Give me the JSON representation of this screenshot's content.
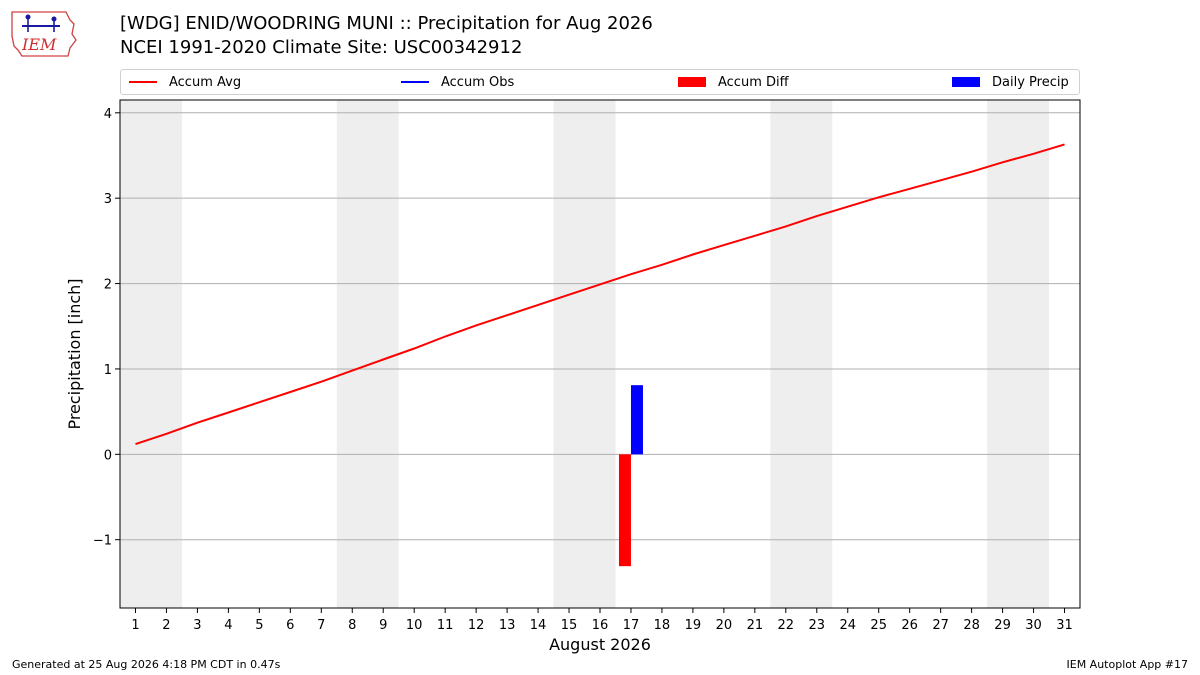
{
  "header": {
    "title_line1": "[WDG] ENID/WOODRING MUNI :: Precipitation for Aug 2026",
    "title_line2": "NCEI 1991-2020 Climate Site: USC00342912",
    "logo_text": "IEM"
  },
  "legend": {
    "items": [
      {
        "label": "Accum Avg",
        "kind": "line",
        "color": "#ff0000"
      },
      {
        "label": "Accum Obs",
        "kind": "line",
        "color": "#0000ff"
      },
      {
        "label": "Accum Diff",
        "kind": "patch",
        "color": "#ff0000"
      },
      {
        "label": "Daily Precip",
        "kind": "patch",
        "color": "#0000ff"
      }
    ]
  },
  "footer": {
    "generated": "Generated at 25 Aug 2026 4:18 PM CDT in 0.47s",
    "app": "IEM Autoplot App #17"
  },
  "chart_data": {
    "type": "line",
    "xlabel": "August 2026",
    "ylabel": "Precipitation [inch]",
    "xlim": [
      0.5,
      31.5
    ],
    "ylim": [
      -1.8,
      4.15
    ],
    "yticks": [
      -1,
      0,
      1,
      2,
      3,
      4
    ],
    "ytick_labels": [
      "−1",
      "0",
      "1",
      "2",
      "3",
      "4"
    ],
    "xticks": [
      1,
      2,
      3,
      4,
      5,
      6,
      7,
      8,
      9,
      10,
      11,
      12,
      13,
      14,
      15,
      16,
      17,
      18,
      19,
      20,
      21,
      22,
      23,
      24,
      25,
      26,
      27,
      28,
      29,
      30,
      31
    ],
    "grid": "y",
    "weekend_shading": [
      [
        1,
        2
      ],
      [
        8,
        9
      ],
      [
        15,
        16
      ],
      [
        22,
        23
      ],
      [
        29,
        30
      ]
    ],
    "series": [
      {
        "name": "Accum Avg",
        "kind": "line",
        "color": "#ff0000",
        "x": [
          1,
          2,
          3,
          4,
          5,
          6,
          7,
          8,
          9,
          10,
          11,
          12,
          13,
          14,
          15,
          16,
          17,
          18,
          19,
          20,
          21,
          22,
          23,
          24,
          25,
          26,
          27,
          28,
          29,
          30,
          31
        ],
        "values": [
          0.12,
          0.24,
          0.37,
          0.49,
          0.61,
          0.73,
          0.85,
          0.98,
          1.11,
          1.24,
          1.38,
          1.51,
          1.63,
          1.75,
          1.87,
          1.99,
          2.11,
          2.22,
          2.34,
          2.45,
          2.56,
          2.67,
          2.79,
          2.9,
          3.01,
          3.11,
          3.21,
          3.31,
          3.42,
          3.52,
          3.63
        ]
      },
      {
        "name": "Accum Diff",
        "kind": "bar",
        "color": "#ff0000",
        "x": [
          17
        ],
        "values": [
          -1.31
        ]
      },
      {
        "name": "Daily Precip",
        "kind": "bar",
        "color": "#0000ff",
        "x": [
          17
        ],
        "values": [
          0.81
        ]
      }
    ]
  }
}
